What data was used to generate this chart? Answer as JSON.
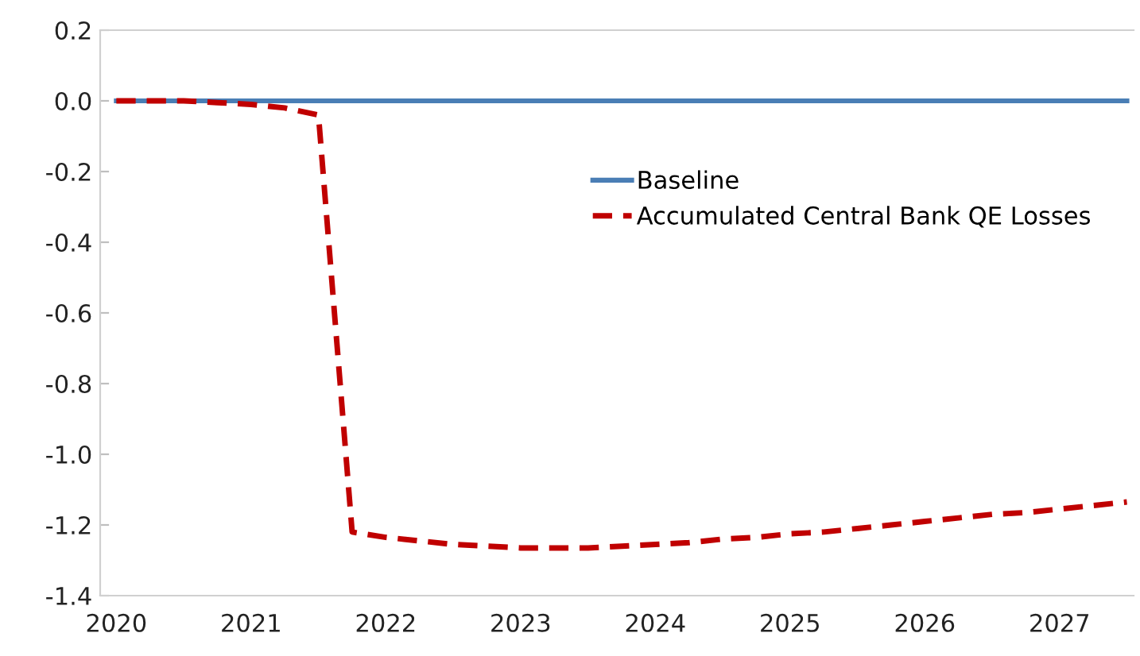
{
  "chart_data": {
    "type": "line",
    "x": [
      2020,
      2020.25,
      2020.5,
      2020.75,
      2021,
      2021.25,
      2021.5,
      2021.75,
      2022,
      2022.25,
      2022.5,
      2022.75,
      2023,
      2023.25,
      2023.5,
      2023.75,
      2024,
      2024.25,
      2024.5,
      2024.75,
      2025,
      2025.25,
      2025.5,
      2025.75,
      2026,
      2026.25,
      2026.5,
      2026.75,
      2027,
      2027.25,
      2027.5
    ],
    "series": [
      {
        "name": "Baseline",
        "color": "#4a7eb5",
        "line_style": "solid",
        "values": [
          0,
          0,
          0,
          0,
          0,
          0,
          0,
          0,
          0,
          0,
          0,
          0,
          0,
          0,
          0,
          0,
          0,
          0,
          0,
          0,
          0,
          0,
          0,
          0,
          0,
          0,
          0,
          0,
          0,
          0,
          0
        ]
      },
      {
        "name": "Accumulated Central Bank QE Losses",
        "color": "#c00000",
        "line_style": "dashed",
        "values": [
          0,
          0,
          0,
          -0.005,
          -0.01,
          -0.02,
          -0.04,
          -1.22,
          -1.235,
          -1.245,
          -1.255,
          -1.26,
          -1.265,
          -1.265,
          -1.265,
          -1.26,
          -1.255,
          -1.25,
          -1.24,
          -1.235,
          -1.225,
          -1.22,
          -1.21,
          -1.2,
          -1.19,
          -1.18,
          -1.17,
          -1.165,
          -1.155,
          -1.145,
          -1.135
        ]
      }
    ],
    "xlim": [
      2019.88,
      2027.55
    ],
    "xticks": [
      2020,
      2021,
      2022,
      2023,
      2024,
      2025,
      2026,
      2027
    ],
    "ylim": [
      -1.4,
      0.2
    ],
    "yticks": [
      0.2,
      {
        "value": 0,
        "label": "0.0"
      },
      -0.2,
      -0.4,
      -0.6,
      -0.8,
      {
        "value": -1,
        "label": "-1.0"
      },
      -1.2,
      -1.4
    ],
    "grid": false,
    "legend": "right",
    "marker": "none"
  }
}
